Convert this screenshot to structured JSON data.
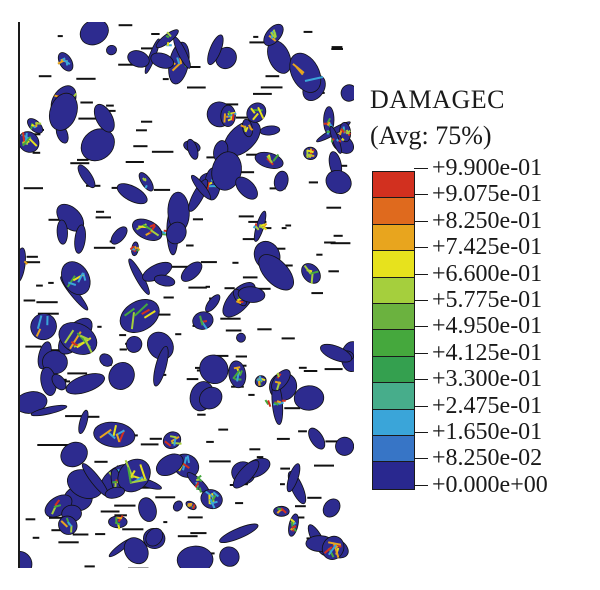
{
  "legend": {
    "title": "DAMAGEC",
    "subtitle": "(Avg: 75%)",
    "labels": [
      "+9.900e-01",
      "+9.075e-01",
      "+8.250e-01",
      "+7.425e-01",
      "+6.600e-01",
      "+5.775e-01",
      "+4.950e-01",
      "+4.125e-01",
      "+3.300e-01",
      "+2.475e-01",
      "+1.650e-01",
      "+8.250e-02",
      "+0.000e+00"
    ],
    "colors": [
      "#d2301f",
      "#df6a1e",
      "#e8a51e",
      "#e7e21d",
      "#a5cf3d",
      "#6bb23f",
      "#45a83d",
      "#34a04f",
      "#47ad8b",
      "#3aa5d9",
      "#3775c6",
      "#29288f"
    ]
  },
  "contour": {
    "base_color": "#2d2b8f",
    "damage_colors": [
      "#2d2b8f",
      "#3aa5d9",
      "#45a83d",
      "#a5cf3d",
      "#e7e21d",
      "#e8a51e",
      "#d2301f"
    ]
  }
}
